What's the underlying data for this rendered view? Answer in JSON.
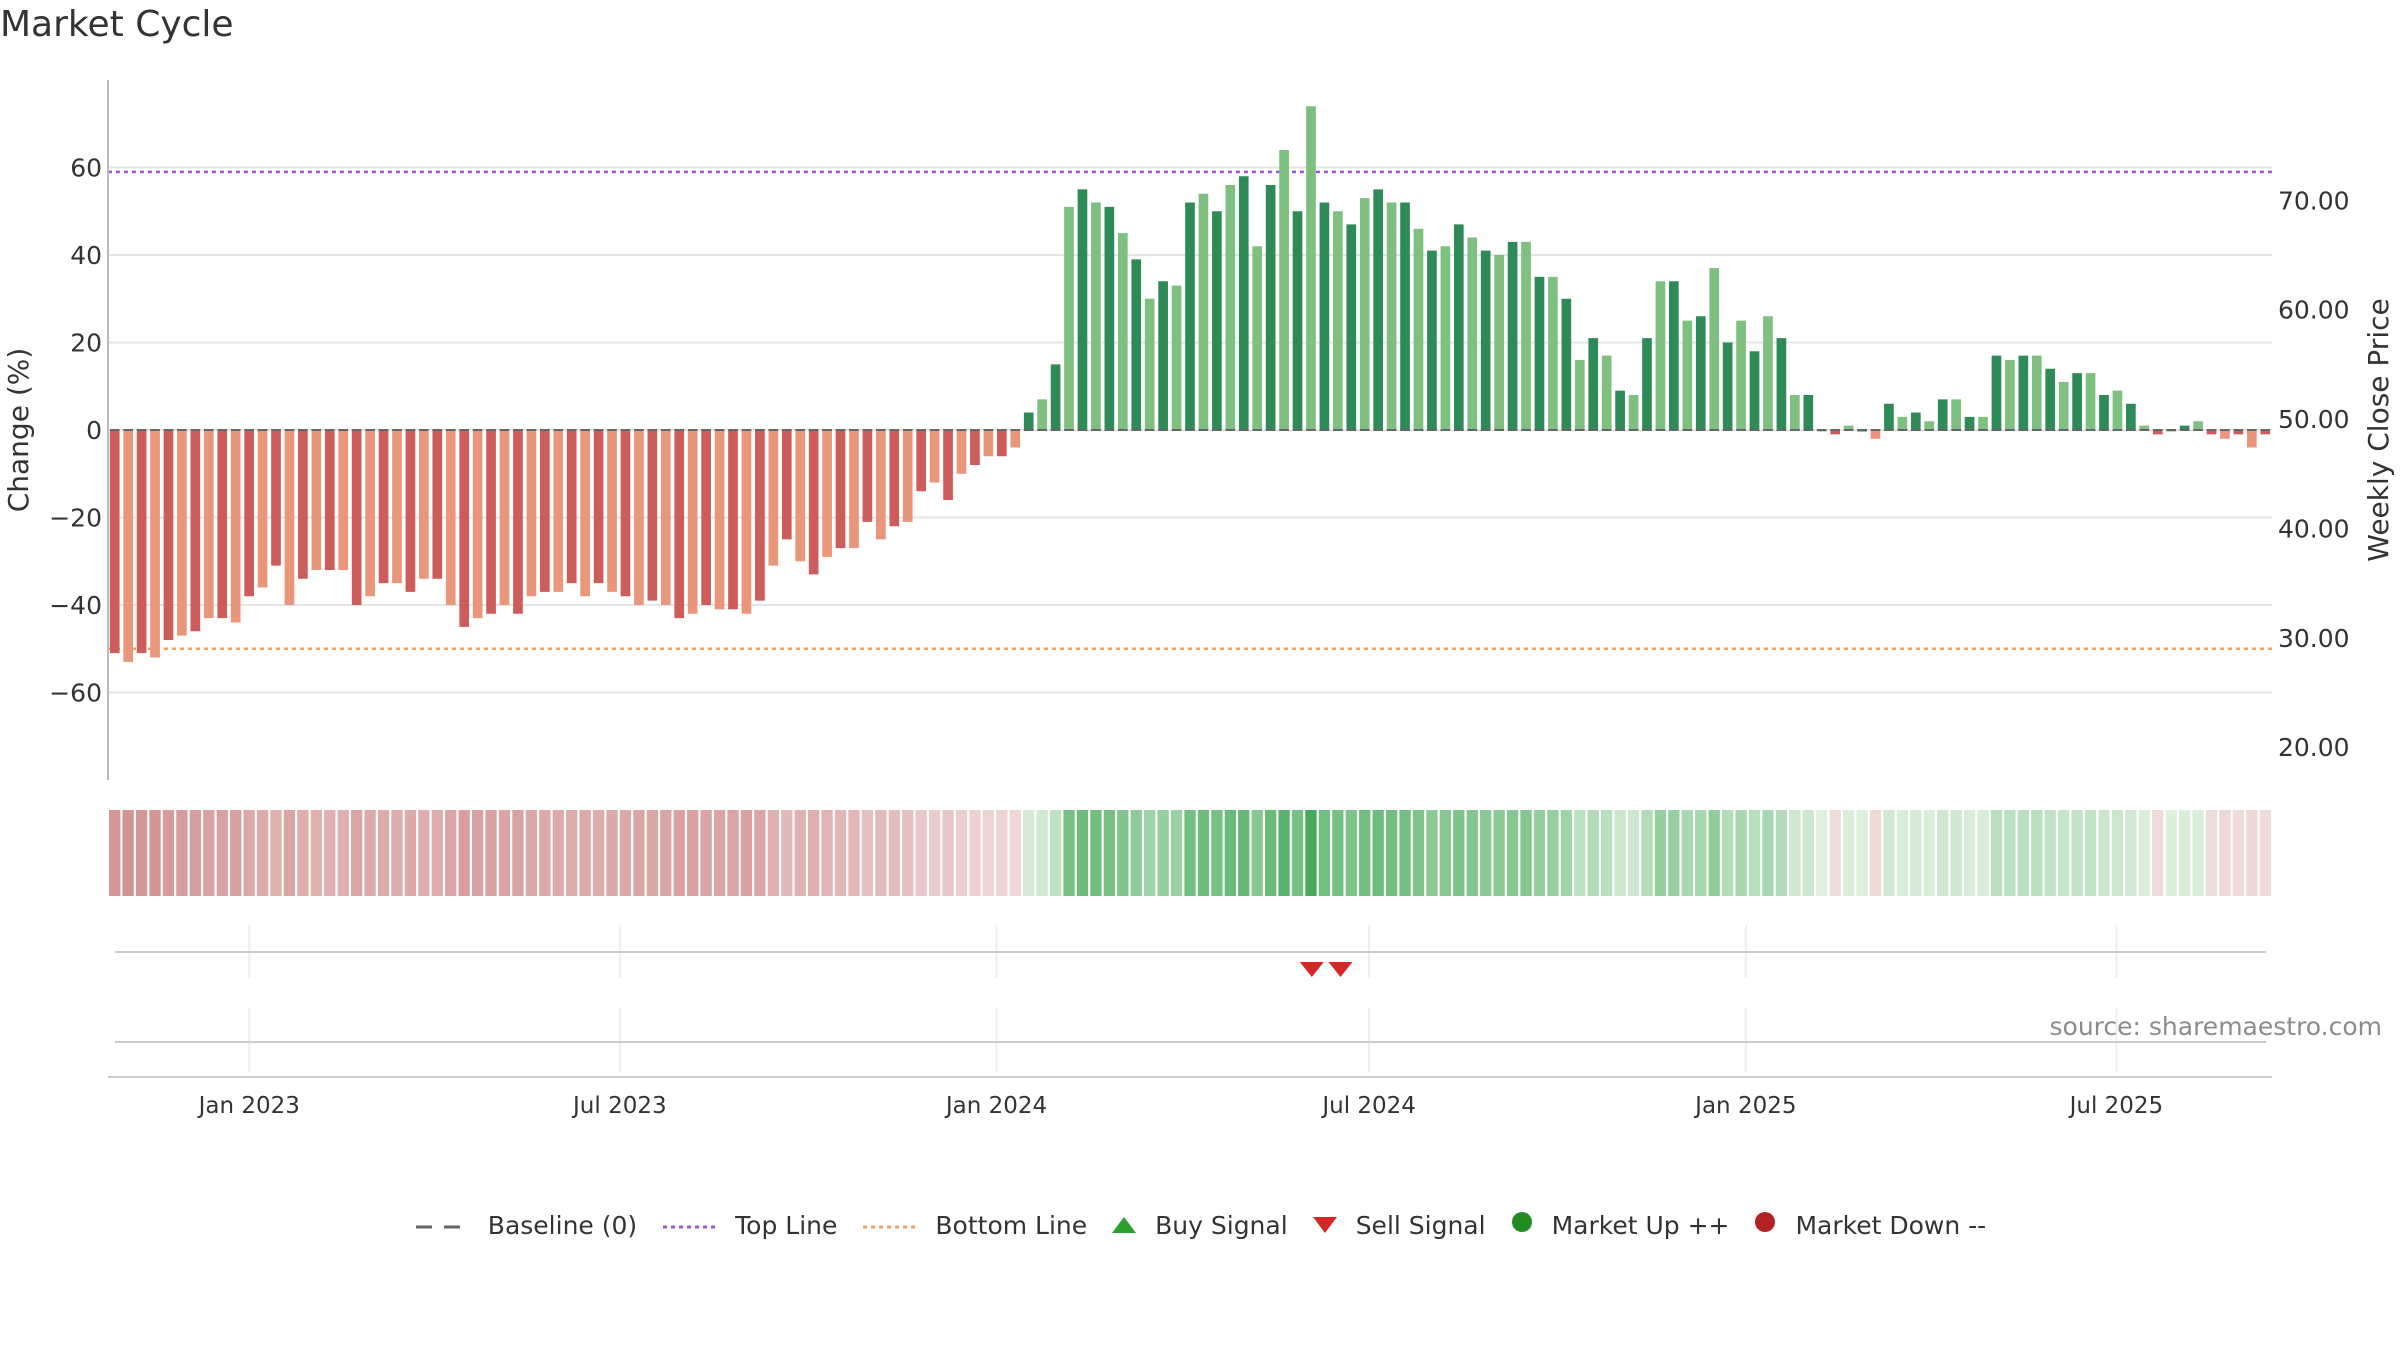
{
  "title": "Market Cycle",
  "source_text": "source: sharemaestro.com",
  "colors": {
    "topLine": "#9b59d0",
    "bottomLine": "#f0a35e",
    "upStrong": "#2e8b57",
    "upLight": "#7fbf7f",
    "downStrong": "#cd5c5c",
    "downLight": "#e9967a",
    "sell": "#d62728",
    "buy": "#2ca02c",
    "marketUp": "#228b22",
    "marketDown": "#b22222"
  },
  "legend": [
    {
      "label": "Baseline (0)",
      "symbol": "dash-line",
      "color": "#666666"
    },
    {
      "label": "Top Line",
      "symbol": "dot-line",
      "color": "#9b59d0"
    },
    {
      "label": "Bottom Line",
      "symbol": "dot-line",
      "color": "#f0a35e"
    },
    {
      "label": "Buy Signal",
      "symbol": "triangle-up",
      "color": "#2ca02c"
    },
    {
      "label": "Sell Signal",
      "symbol": "triangle-down",
      "color": "#d62728"
    },
    {
      "label": "Market Up ++",
      "symbol": "circle",
      "color": "#228b22"
    },
    {
      "label": "Market Down --",
      "symbol": "circle",
      "color": "#b22222"
    }
  ],
  "chart_data": {
    "type": "bar",
    "title": "Market Cycle",
    "ylabel": "Change (%)",
    "y2label": "Weekly Close Price",
    "ylim": [
      -80,
      80
    ],
    "y2lim": [
      17,
      81
    ],
    "yticks": [
      -60,
      -40,
      -20,
      0,
      20,
      40,
      60
    ],
    "y2ticks": [
      "20.00",
      "30.00",
      "40.00",
      "50.00",
      "60.00",
      "70.00"
    ],
    "y2tick_values": [
      20,
      30,
      40,
      50,
      60,
      70
    ],
    "top_line": 59,
    "bottom_line": -50,
    "grid": true,
    "legend_position": "bottom",
    "x_start": "2022-10-24",
    "x_end": "2025-09-15",
    "x_ticks": [
      {
        "date": "2023-01-01",
        "label": "Jan 2023"
      },
      {
        "date": "2023-07-01",
        "label": "Jul 2023"
      },
      {
        "date": "2024-01-01",
        "label": "Jan 2024"
      },
      {
        "date": "2024-07-01",
        "label": "Jul 2024"
      },
      {
        "date": "2025-01-01",
        "label": "Jan 2025"
      },
      {
        "date": "2025-07-01",
        "label": "Jul 2025"
      }
    ],
    "series": [
      {
        "name": "Change",
        "start_week": "2022-10-24",
        "values": [
          -51,
          -53,
          -51,
          -52,
          -48,
          -47,
          -46,
          -43,
          -43,
          -44,
          -38,
          -36,
          -31,
          -40,
          -34,
          -32,
          -32,
          -32,
          -40,
          -38,
          -35,
          -35,
          -37,
          -34,
          -34,
          -40,
          -45,
          -43,
          -42,
          -40,
          -42,
          -38,
          -37,
          -37,
          -35,
          -38,
          -35,
          -37,
          -38,
          -40,
          -39,
          -40,
          -43,
          -42,
          -40,
          -41,
          -41,
          -42,
          -39,
          -31,
          -25,
          -30,
          -33,
          -29,
          -27,
          -27,
          -21,
          -25,
          -22,
          -21,
          -14,
          -12,
          -16,
          -10,
          -8,
          -6,
          -6,
          -4,
          4,
          7,
          15,
          51,
          55,
          52,
          51,
          45,
          39,
          30,
          34,
          33,
          52,
          54,
          50,
          56,
          58,
          42,
          56,
          64,
          50,
          74,
          52,
          50,
          47,
          53,
          55,
          52,
          52,
          46,
          41,
          42,
          47,
          44,
          41,
          40,
          43,
          43,
          35,
          35,
          30,
          16,
          21,
          17,
          9,
          8,
          21,
          34,
          34,
          25,
          26,
          37,
          20,
          25,
          18,
          26,
          21,
          8,
          8,
          0,
          -1,
          1,
          0,
          -2,
          6,
          3,
          4,
          2,
          7,
          7,
          3,
          3,
          17,
          16,
          17,
          17,
          14,
          11,
          13,
          13,
          8,
          9,
          6,
          1,
          -1,
          0,
          1,
          2,
          -1,
          -2,
          -1,
          -4,
          -1
        ]
      }
    ],
    "heat_strip": {
      "description": "per-week cycle strength shading, same values as Change"
    },
    "signals": [
      {
        "type": "sell",
        "date": "2024-06-03"
      },
      {
        "type": "sell",
        "date": "2024-06-17"
      }
    ],
    "market_state": []
  }
}
